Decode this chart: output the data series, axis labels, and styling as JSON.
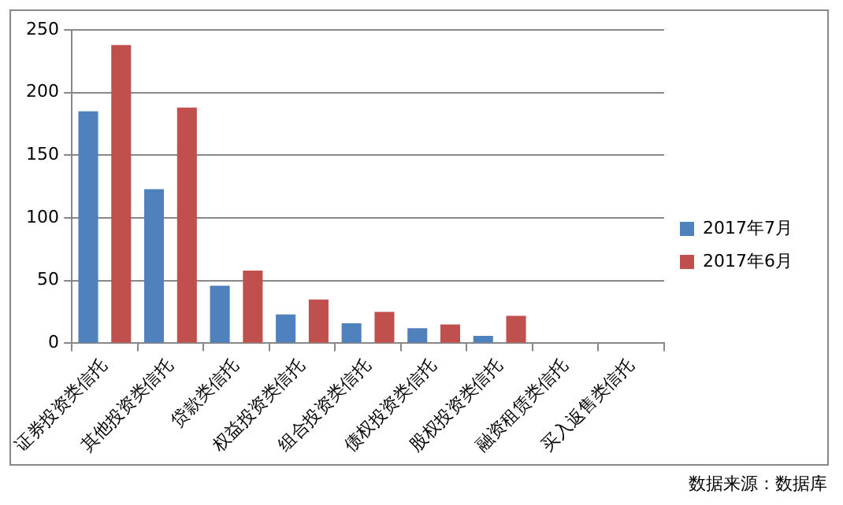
{
  "chart_data": {
    "type": "bar",
    "categories": [
      "证券投资类信托",
      "其他投资类信托",
      "贷款类信托",
      "权益投资类信托",
      "组合投资类信托",
      "债权投资类信托",
      "股权投资类信托",
      "融资租赁类信托",
      "买入返售类信托"
    ],
    "series": [
      {
        "name": "2017年7月",
        "color": "#4f81bd",
        "values": [
          185,
          123,
          46,
          23,
          16,
          12,
          6,
          0,
          0
        ]
      },
      {
        "name": "2017年6月",
        "color": "#c0504d",
        "values": [
          238,
          188,
          58,
          35,
          25,
          15,
          22,
          0,
          0
        ]
      }
    ],
    "ylim": [
      0,
      250
    ],
    "yticks": [
      0,
      50,
      100,
      150,
      200,
      250
    ],
    "grid": "y",
    "legend": "right",
    "annotations": [
      "数据来源：数据库"
    ]
  }
}
